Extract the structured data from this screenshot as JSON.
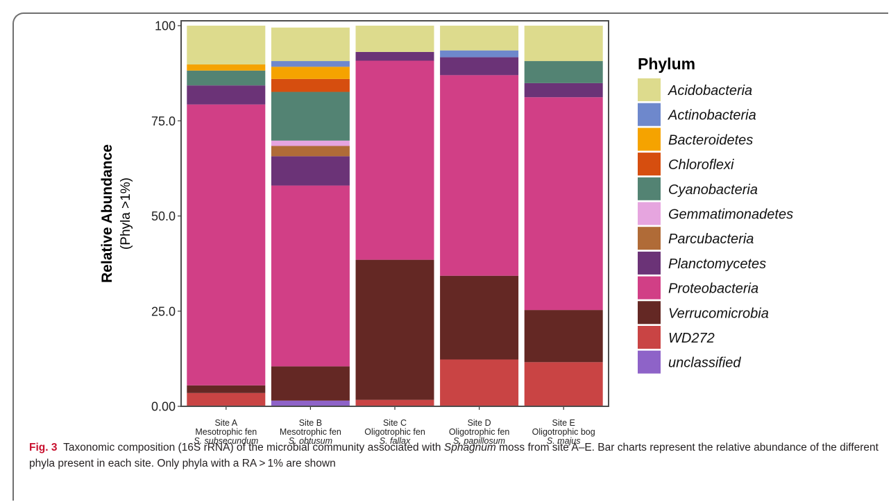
{
  "chart_data": {
    "type": "bar",
    "stacked": true,
    "ylabel": "Relative Abundance",
    "ylabel_sub": "(Phyla >1%)",
    "ylim": [
      0,
      100
    ],
    "yticks": [
      "0.00",
      "25.0",
      "50.0",
      "75.0",
      "100"
    ],
    "ytick_values": [
      0,
      25,
      50,
      75,
      100
    ],
    "categories": [
      {
        "site": "Site A",
        "habitat": "Mesotrophic fen",
        "species": "S. subsecundum"
      },
      {
        "site": "Site B",
        "habitat": "Mesotrophic fen",
        "species": "S. obtusum"
      },
      {
        "site": "Site C",
        "habitat": "Oligotrophic fen",
        "species": "S. fallax"
      },
      {
        "site": "Site D",
        "habitat": "Oligotrophic fen",
        "species": "S. papillosum"
      },
      {
        "site": "Site E",
        "habitat": "Oligotrophic bog",
        "species": "S. majus"
      }
    ],
    "legend_title": "Phylum",
    "legend_position": "right",
    "series": [
      {
        "name": "unclassified",
        "color": "#8e63c8",
        "values": [
          0,
          1.5,
          0,
          0,
          0
        ]
      },
      {
        "name": "WD272",
        "color": "#c94444",
        "values": [
          3.5,
          0,
          1.7,
          12.3,
          11.6
        ]
      },
      {
        "name": "Verrucomicrobia",
        "color": "#642824",
        "values": [
          2.0,
          9.0,
          36.8,
          22.0,
          13.7
        ]
      },
      {
        "name": "Proteobacteria",
        "color": "#d13f86",
        "values": [
          73.8,
          47.5,
          52.3,
          52.7,
          55.9
        ]
      },
      {
        "name": "Planctomycetes",
        "color": "#6b3377",
        "values": [
          5.0,
          7.7,
          2.3,
          4.7,
          3.7
        ]
      },
      {
        "name": "Parcubacteria",
        "color": "#b06b37",
        "values": [
          0,
          2.7,
          0,
          0,
          0
        ]
      },
      {
        "name": "Gemmatimonadetes",
        "color": "#e6a5df",
        "values": [
          0,
          1.4,
          0,
          0,
          0
        ]
      },
      {
        "name": "Cyanobacteria",
        "color": "#538373",
        "values": [
          3.9,
          12.8,
          0,
          0,
          5.8
        ]
      },
      {
        "name": "Chloroflexi",
        "color": "#d64e0f",
        "values": [
          0,
          3.4,
          0,
          0,
          0
        ]
      },
      {
        "name": "Bacteroidetes",
        "color": "#f5a300",
        "values": [
          1.6,
          3.2,
          0,
          0,
          0
        ]
      },
      {
        "name": "Actinobacteria",
        "color": "#6e88cc",
        "values": [
          0,
          1.5,
          0,
          1.8,
          0
        ]
      },
      {
        "name": "Acidobacteria",
        "color": "#dddb8d",
        "values": [
          10.2,
          8.8,
          6.9,
          6.5,
          9.3
        ]
      }
    ],
    "legend_order": [
      "Acidobacteria",
      "Actinobacteria",
      "Bacteroidetes",
      "Chloroflexi",
      "Cyanobacteria",
      "Gemmatimonadetes",
      "Parcubacteria",
      "Planctomycetes",
      "Proteobacteria",
      "Verrucomicrobia",
      "WD272",
      "unclassified"
    ]
  },
  "caption": {
    "label": "Fig. 3",
    "text_1": "Taxonomic composition (16S rRNA) of the microbial community associated with ",
    "genus": "Sphagnum",
    "text_2": " moss from site A–E. Bar charts represent the relative abundance of the different phyla present in each site. Only phyla with a RA > 1% are shown"
  }
}
